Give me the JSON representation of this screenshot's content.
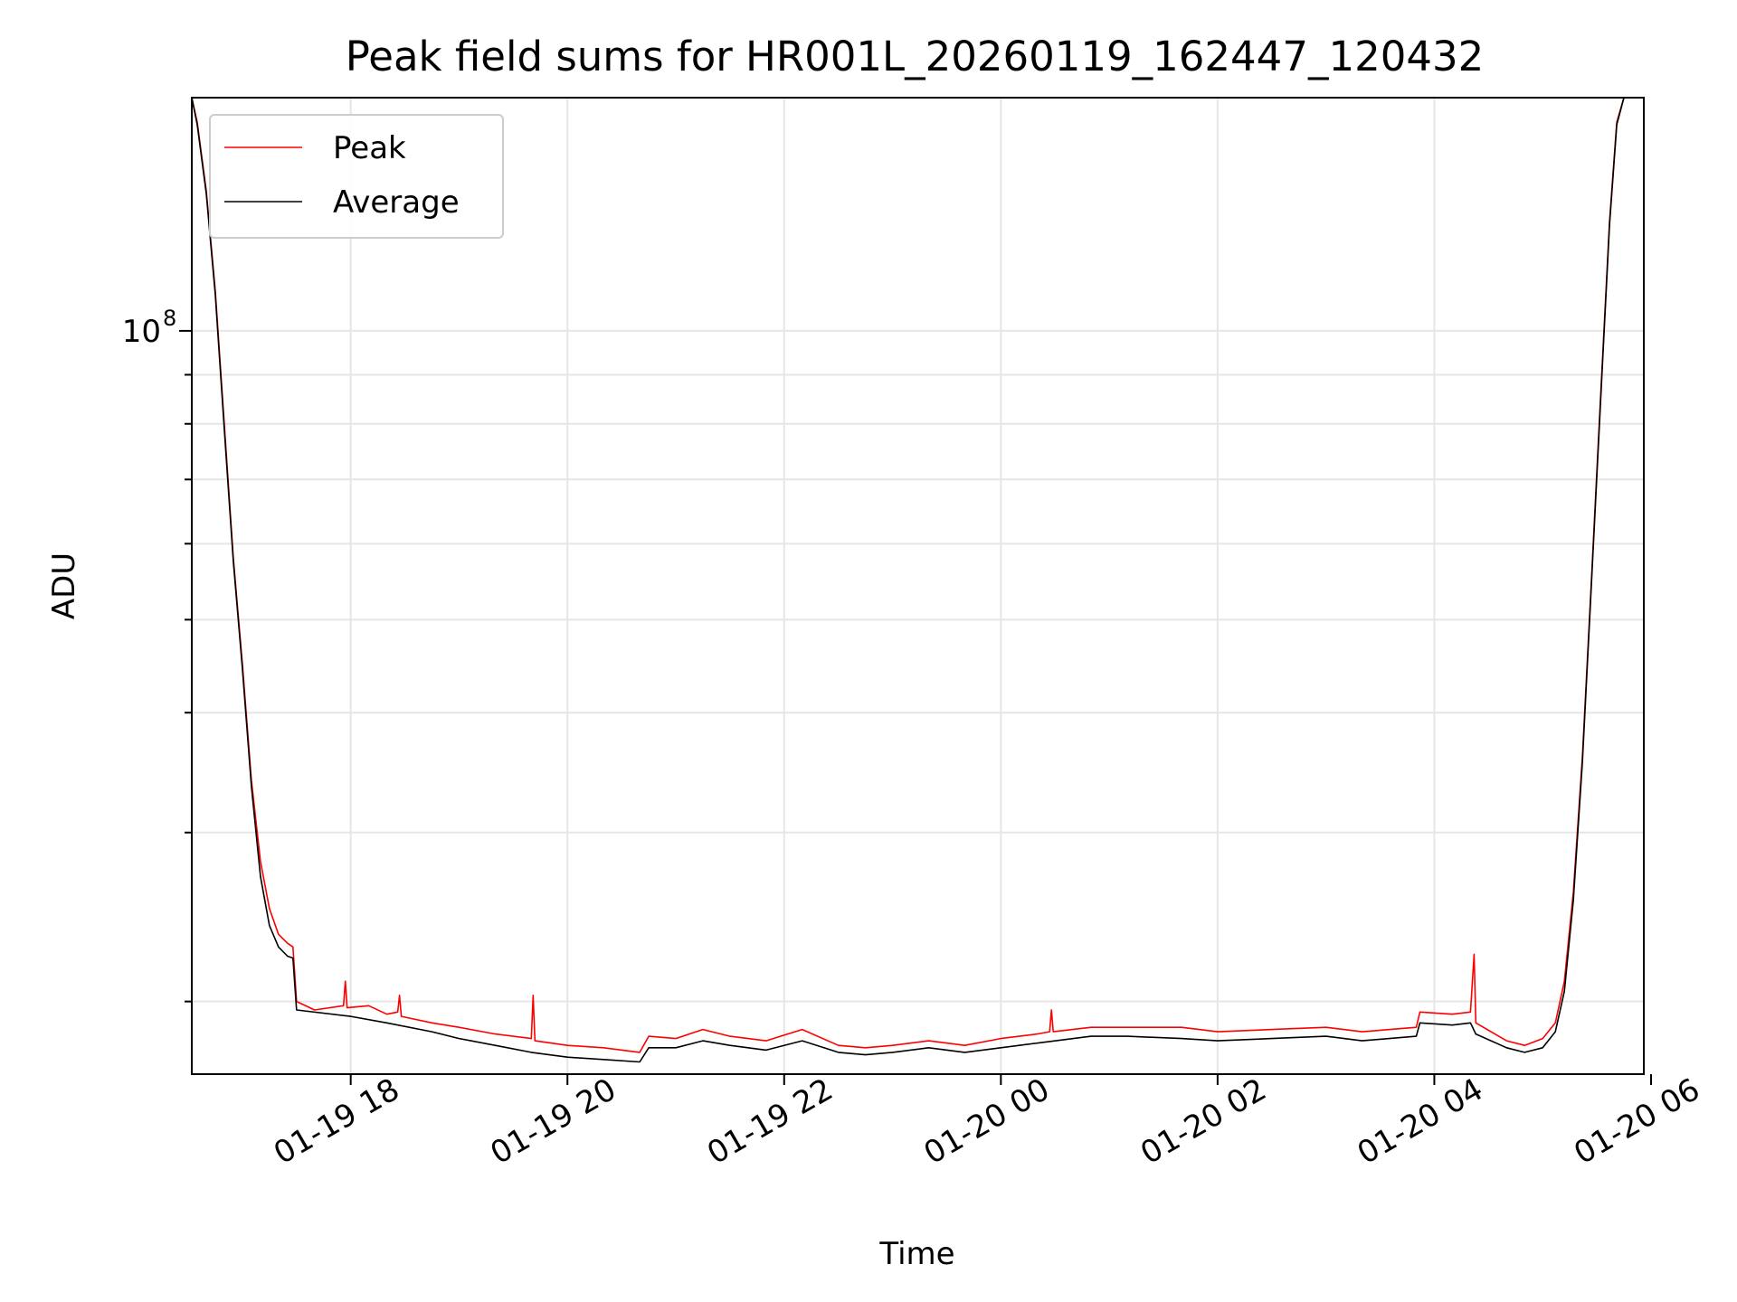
{
  "chart_data": {
    "type": "line",
    "title": "Peak field sums for HR001L_20260119_162447_120432",
    "xlabel": "Time",
    "ylabel": "ADU",
    "y_scale": "log",
    "grid": true,
    "grid_minor_y": true,
    "legend_position": "upper left",
    "x_range": [
      "2026-01-19 16:32",
      "2026-01-20 05:56"
    ],
    "y_range": [
      16800000,
      175000000
    ],
    "x_ticks": [
      {
        "t": "2026-01-19 18:00",
        "label": "01-19 18"
      },
      {
        "t": "2026-01-19 20:00",
        "label": "01-19 20"
      },
      {
        "t": "2026-01-19 22:00",
        "label": "01-19 22"
      },
      {
        "t": "2026-01-20 00:00",
        "label": "01-20 00"
      },
      {
        "t": "2026-01-20 02:00",
        "label": "01-20 02"
      },
      {
        "t": "2026-01-20 04:00",
        "label": "01-20 04"
      },
      {
        "t": "2026-01-20 06:00",
        "label": "01-20 06"
      }
    ],
    "y_major_ticks": [
      {
        "value": 100000000,
        "label_base": "10",
        "label_exp": "8"
      }
    ],
    "y_minor_ticks": [
      20000000,
      30000000,
      40000000,
      50000000,
      60000000,
      70000000,
      80000000,
      90000000
    ],
    "series": [
      {
        "name": "Peak",
        "color": "#ff0000",
        "points": [
          [
            "2026-01-19 16:32",
            175000000
          ],
          [
            "2026-01-19 16:35",
            165000000
          ],
          [
            "2026-01-19 16:40",
            140000000
          ],
          [
            "2026-01-19 16:45",
            110000000
          ],
          [
            "2026-01-19 16:50",
            80000000
          ],
          [
            "2026-01-19 16:55",
            58000000
          ],
          [
            "2026-01-19 17:00",
            45000000
          ],
          [
            "2026-01-19 17:05",
            34000000
          ],
          [
            "2026-01-19 17:10",
            28000000
          ],
          [
            "2026-01-19 17:15",
            25000000
          ],
          [
            "2026-01-19 17:20",
            23500000
          ],
          [
            "2026-01-19 17:25",
            23000000
          ],
          [
            "2026-01-19 17:28",
            22800000
          ],
          [
            "2026-01-19 17:30",
            20000000
          ],
          [
            "2026-01-19 17:40",
            19600000
          ],
          [
            "2026-01-19 17:56",
            19800000
          ],
          [
            "2026-01-19 17:57",
            21000000
          ],
          [
            "2026-01-19 17:58",
            19700000
          ],
          [
            "2026-01-19 18:10",
            19800000
          ],
          [
            "2026-01-19 18:20",
            19400000
          ],
          [
            "2026-01-19 18:26",
            19500000
          ],
          [
            "2026-01-19 18:27",
            20300000
          ],
          [
            "2026-01-19 18:28",
            19300000
          ],
          [
            "2026-01-19 18:45",
            19000000
          ],
          [
            "2026-01-19 19:00",
            18800000
          ],
          [
            "2026-01-19 19:20",
            18500000
          ],
          [
            "2026-01-19 19:40",
            18300000
          ],
          [
            "2026-01-19 19:41",
            20300000
          ],
          [
            "2026-01-19 19:42",
            18200000
          ],
          [
            "2026-01-19 20:00",
            18000000
          ],
          [
            "2026-01-19 20:20",
            17900000
          ],
          [
            "2026-01-19 20:40",
            17700000
          ],
          [
            "2026-01-19 20:45",
            18400000
          ],
          [
            "2026-01-19 21:00",
            18300000
          ],
          [
            "2026-01-19 21:15",
            18700000
          ],
          [
            "2026-01-19 21:30",
            18400000
          ],
          [
            "2026-01-19 21:50",
            18200000
          ],
          [
            "2026-01-19 22:10",
            18700000
          ],
          [
            "2026-01-19 22:30",
            18000000
          ],
          [
            "2026-01-19 22:45",
            17900000
          ],
          [
            "2026-01-19 23:00",
            18000000
          ],
          [
            "2026-01-19 23:20",
            18200000
          ],
          [
            "2026-01-19 23:40",
            18000000
          ],
          [
            "2026-01-20 00:00",
            18300000
          ],
          [
            "2026-01-20 00:20",
            18500000
          ],
          [
            "2026-01-20 00:27",
            18600000
          ],
          [
            "2026-01-20 00:28",
            19600000
          ],
          [
            "2026-01-20 00:29",
            18600000
          ],
          [
            "2026-01-20 00:50",
            18800000
          ],
          [
            "2026-01-20 01:10",
            18800000
          ],
          [
            "2026-01-20 01:40",
            18800000
          ],
          [
            "2026-01-20 02:00",
            18600000
          ],
          [
            "2026-01-20 02:30",
            18700000
          ],
          [
            "2026-01-20 03:00",
            18800000
          ],
          [
            "2026-01-20 03:20",
            18600000
          ],
          [
            "2026-01-20 03:50",
            18800000
          ],
          [
            "2026-01-20 03:52",
            19500000
          ],
          [
            "2026-01-20 04:10",
            19400000
          ],
          [
            "2026-01-20 04:20",
            19500000
          ],
          [
            "2026-01-20 04:22",
            22400000
          ],
          [
            "2026-01-20 04:23",
            19000000
          ],
          [
            "2026-01-20 04:40",
            18200000
          ],
          [
            "2026-01-20 04:50",
            18000000
          ],
          [
            "2026-01-20 05:00",
            18300000
          ],
          [
            "2026-01-20 05:07",
            19000000
          ],
          [
            "2026-01-20 05:12",
            21000000
          ],
          [
            "2026-01-20 05:17",
            26000000
          ],
          [
            "2026-01-20 05:22",
            36000000
          ],
          [
            "2026-01-20 05:27",
            55000000
          ],
          [
            "2026-01-20 05:32",
            85000000
          ],
          [
            "2026-01-20 05:37",
            130000000
          ],
          [
            "2026-01-20 05:41",
            165000000
          ],
          [
            "2026-01-20 05:45",
            175000000
          ]
        ]
      },
      {
        "name": "Average",
        "color": "#000000",
        "points": [
          [
            "2026-01-19 16:32",
            175000000
          ],
          [
            "2026-01-19 16:35",
            164000000
          ],
          [
            "2026-01-19 16:40",
            139000000
          ],
          [
            "2026-01-19 16:45",
            109000000
          ],
          [
            "2026-01-19 16:50",
            79000000
          ],
          [
            "2026-01-19 16:55",
            57500000
          ],
          [
            "2026-01-19 17:00",
            44500000
          ],
          [
            "2026-01-19 17:05",
            33500000
          ],
          [
            "2026-01-19 17:10",
            27000000
          ],
          [
            "2026-01-19 17:15",
            24000000
          ],
          [
            "2026-01-19 17:20",
            22800000
          ],
          [
            "2026-01-19 17:25",
            22300000
          ],
          [
            "2026-01-19 17:28",
            22200000
          ],
          [
            "2026-01-19 17:30",
            19600000
          ],
          [
            "2026-01-19 18:00",
            19300000
          ],
          [
            "2026-01-19 18:20",
            19000000
          ],
          [
            "2026-01-19 18:45",
            18600000
          ],
          [
            "2026-01-19 19:00",
            18300000
          ],
          [
            "2026-01-19 19:20",
            18000000
          ],
          [
            "2026-01-19 19:40",
            17700000
          ],
          [
            "2026-01-19 20:00",
            17500000
          ],
          [
            "2026-01-19 20:20",
            17400000
          ],
          [
            "2026-01-19 20:40",
            17300000
          ],
          [
            "2026-01-19 20:45",
            17900000
          ],
          [
            "2026-01-19 21:00",
            17900000
          ],
          [
            "2026-01-19 21:15",
            18200000
          ],
          [
            "2026-01-19 21:30",
            18000000
          ],
          [
            "2026-01-19 21:50",
            17800000
          ],
          [
            "2026-01-19 22:10",
            18200000
          ],
          [
            "2026-01-19 22:30",
            17700000
          ],
          [
            "2026-01-19 22:45",
            17600000
          ],
          [
            "2026-01-19 23:00",
            17700000
          ],
          [
            "2026-01-19 23:20",
            17900000
          ],
          [
            "2026-01-19 23:40",
            17700000
          ],
          [
            "2026-01-20 00:00",
            17900000
          ],
          [
            "2026-01-20 00:20",
            18100000
          ],
          [
            "2026-01-20 00:50",
            18400000
          ],
          [
            "2026-01-20 01:10",
            18400000
          ],
          [
            "2026-01-20 01:40",
            18300000
          ],
          [
            "2026-01-20 02:00",
            18200000
          ],
          [
            "2026-01-20 02:30",
            18300000
          ],
          [
            "2026-01-20 03:00",
            18400000
          ],
          [
            "2026-01-20 03:20",
            18200000
          ],
          [
            "2026-01-20 03:50",
            18400000
          ],
          [
            "2026-01-20 03:52",
            19000000
          ],
          [
            "2026-01-20 04:10",
            18900000
          ],
          [
            "2026-01-20 04:20",
            19000000
          ],
          [
            "2026-01-20 04:23",
            18500000
          ],
          [
            "2026-01-20 04:40",
            17900000
          ],
          [
            "2026-01-20 04:50",
            17700000
          ],
          [
            "2026-01-20 05:00",
            17900000
          ],
          [
            "2026-01-20 05:07",
            18600000
          ],
          [
            "2026-01-20 05:12",
            20500000
          ],
          [
            "2026-01-20 05:17",
            25500000
          ],
          [
            "2026-01-20 05:22",
            35500000
          ],
          [
            "2026-01-20 05:27",
            54500000
          ],
          [
            "2026-01-20 05:32",
            84000000
          ],
          [
            "2026-01-20 05:37",
            129000000
          ],
          [
            "2026-01-20 05:41",
            164000000
          ],
          [
            "2026-01-20 05:45",
            175000000
          ]
        ]
      }
    ]
  }
}
